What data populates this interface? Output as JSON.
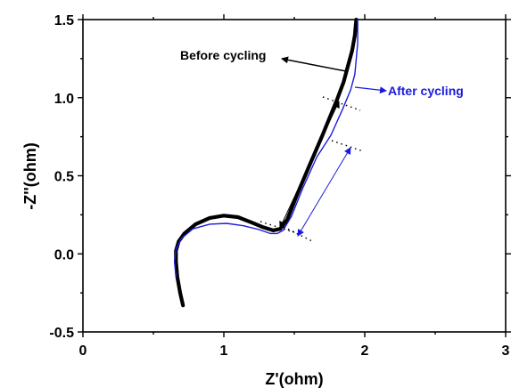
{
  "chart_data": {
    "type": "line",
    "title": "",
    "xlabel": "Z'(ohm)",
    "ylabel": "-Z''(ohm)",
    "xlim": [
      0,
      3
    ],
    "ylim": [
      -0.5,
      1.5
    ],
    "xticks": [
      "0",
      "1",
      "2",
      "3"
    ],
    "yticks": [
      "-0.5",
      "0.0",
      "0.5",
      "1.0",
      "1.5"
    ],
    "grid": false,
    "legend": "none",
    "series": [
      {
        "name": "Before cycling",
        "color": "#000000",
        "x": [
          0.71,
          0.69,
          0.67,
          0.66,
          0.66,
          0.68,
          0.72,
          0.8,
          0.9,
          1.0,
          1.1,
          1.2,
          1.28,
          1.35,
          1.4,
          1.45,
          1.52,
          1.6,
          1.7,
          1.8,
          1.85,
          1.88,
          1.91,
          1.93,
          1.94
        ],
        "y": [
          -0.33,
          -0.25,
          -0.15,
          -0.05,
          0.02,
          0.08,
          0.13,
          0.19,
          0.23,
          0.245,
          0.235,
          0.2,
          0.17,
          0.15,
          0.16,
          0.22,
          0.38,
          0.55,
          0.76,
          0.98,
          1.1,
          1.2,
          1.3,
          1.4,
          1.5
        ]
      },
      {
        "name": "After cycling",
        "color": "#1a1adf",
        "x": [
          0.66,
          0.65,
          0.66,
          0.7,
          0.78,
          0.9,
          1.02,
          1.14,
          1.25,
          1.33,
          1.38,
          1.42,
          1.48,
          1.56,
          1.66,
          1.76,
          1.84,
          1.9,
          1.93,
          1.94,
          1.95,
          1.95
        ],
        "y": [
          -0.15,
          -0.05,
          0.03,
          0.1,
          0.16,
          0.19,
          0.195,
          0.18,
          0.155,
          0.13,
          0.13,
          0.15,
          0.24,
          0.42,
          0.62,
          0.76,
          0.92,
          1.05,
          1.15,
          1.25,
          1.35,
          1.5
        ]
      }
    ],
    "annotations": [
      {
        "text": "Before cycling",
        "color": "#000000"
      },
      {
        "text": "After cycling",
        "color": "#1a1adf"
      }
    ]
  }
}
